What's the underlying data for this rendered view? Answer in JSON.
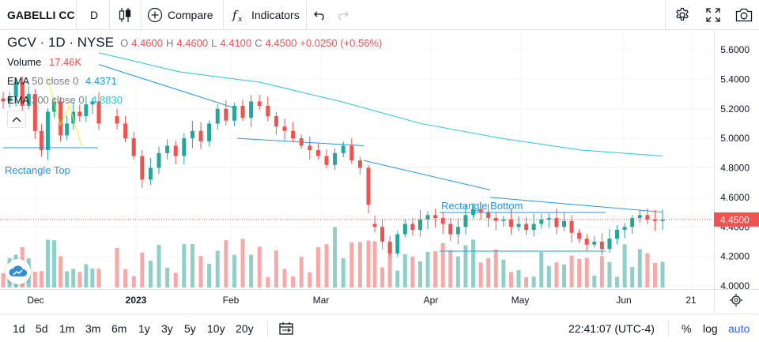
{
  "toolbar": {
    "symbol": "GABELLI CC",
    "interval": "D",
    "compare_label": "Compare",
    "indicators_label": "Indicators",
    "icons": [
      "candlestick-icon",
      "plus-circle-icon",
      "fx-icon",
      "undo-icon",
      "redo-icon",
      "gear-icon",
      "fullscreen-icon",
      "camera-icon"
    ]
  },
  "legend": {
    "title": "GCV · 1D · NYSE",
    "o_label": "O",
    "o_value": "4.4600",
    "h_label": "H",
    "h_value": "4.4600",
    "l_label": "L",
    "l_value": "4.4100",
    "c_label": "C",
    "c_value": "4.4500",
    "change": "+0.0250 (+0.56%)",
    "volume_label": "Volume",
    "volume_value": "17.46K",
    "ema50_label": "EMA",
    "ema50_params": "50 close 0",
    "ema50_value": "4.4371",
    "ema200_label": "EMA",
    "ema200_params": "200 close 0",
    "ema200_value": "4.8830"
  },
  "colors": {
    "up": "#26a69a",
    "down": "#ef5350",
    "vol_up": "#8fcfc7",
    "vol_down": "#f7a9a7",
    "ema50": "#2196f3",
    "ema200": "#26c6da",
    "rectangle": "#2196f3",
    "last_price": "#ef5350",
    "drawing_line": "#ffeb3b"
  },
  "chart_data": {
    "type": "candlestick",
    "price_axis": {
      "ticks": [
        "5.6000",
        "5.4000",
        "5.2000",
        "5.0000",
        "4.8000",
        "4.6000",
        "4.4000",
        "4.2000",
        "4.0000"
      ],
      "range": [
        3.995,
        5.66
      ]
    },
    "time_axis": {
      "labels": [
        "Dec",
        "2023",
        "Feb",
        "Mar",
        "Apr",
        "May",
        "Jun",
        "21"
      ]
    },
    "last_price": "4.4500",
    "segments": [
      [
        5.25,
        5.28,
        5.38,
        5.22,
        5.3,
        5.05,
        4.92,
        5.18,
        5.25,
        5.02,
        5.1,
        5.18,
        5.15,
        5.23,
        5.25,
        5.1
      ],
      [
        5.1,
        5.0,
        4.88,
        4.72,
        4.8,
        4.9,
        4.95,
        4.88,
        5.0,
        5.05,
        4.98,
        5.1,
        5.2,
        5.12,
        5.22,
        5.14,
        5.25,
        5.22,
        5.15,
        5.08,
        5.05,
        5.0,
        4.95,
        4.92,
        4.88,
        4.82,
        4.9,
        4.95,
        4.85,
        4.8,
        4.55
      ],
      [
        4.4,
        4.3,
        4.22,
        4.35,
        4.42,
        4.38,
        4.45,
        4.48,
        4.46,
        4.42,
        4.35,
        4.4,
        4.48,
        4.52,
        4.5,
        4.46,
        4.44,
        4.45,
        4.4,
        4.42,
        4.38,
        4.42,
        4.45,
        4.46,
        4.4,
        4.44,
        4.36,
        4.32,
        4.28,
        4.3,
        4.25,
        4.32,
        4.38,
        4.4,
        4.46,
        4.48,
        4.45,
        4.44,
        4.45
      ]
    ],
    "ema50": [
      [
        5.5,
        5.2
      ],
      [
        5.0,
        4.95
      ],
      [
        4.85,
        4.65
      ],
      [
        4.6,
        4.5
      ],
      [
        4.45,
        4.44
      ]
    ],
    "ema200": [
      5.58,
      5.45,
      5.38,
      5.25,
      5.1,
      5.0,
      4.92,
      4.88
    ],
    "annotations": {
      "rectangle_top": "Rectangle Top",
      "rectangle_bottom": "Rectangle Bottom"
    }
  },
  "bottom": {
    "ranges": [
      "1d",
      "5d",
      "1m",
      "3m",
      "6m",
      "1y",
      "3y",
      "5y",
      "10y",
      "20y"
    ],
    "clock": "22:41:07 (UTC-4)",
    "percent_label": "%",
    "log_label": "log",
    "auto_label": "auto"
  }
}
